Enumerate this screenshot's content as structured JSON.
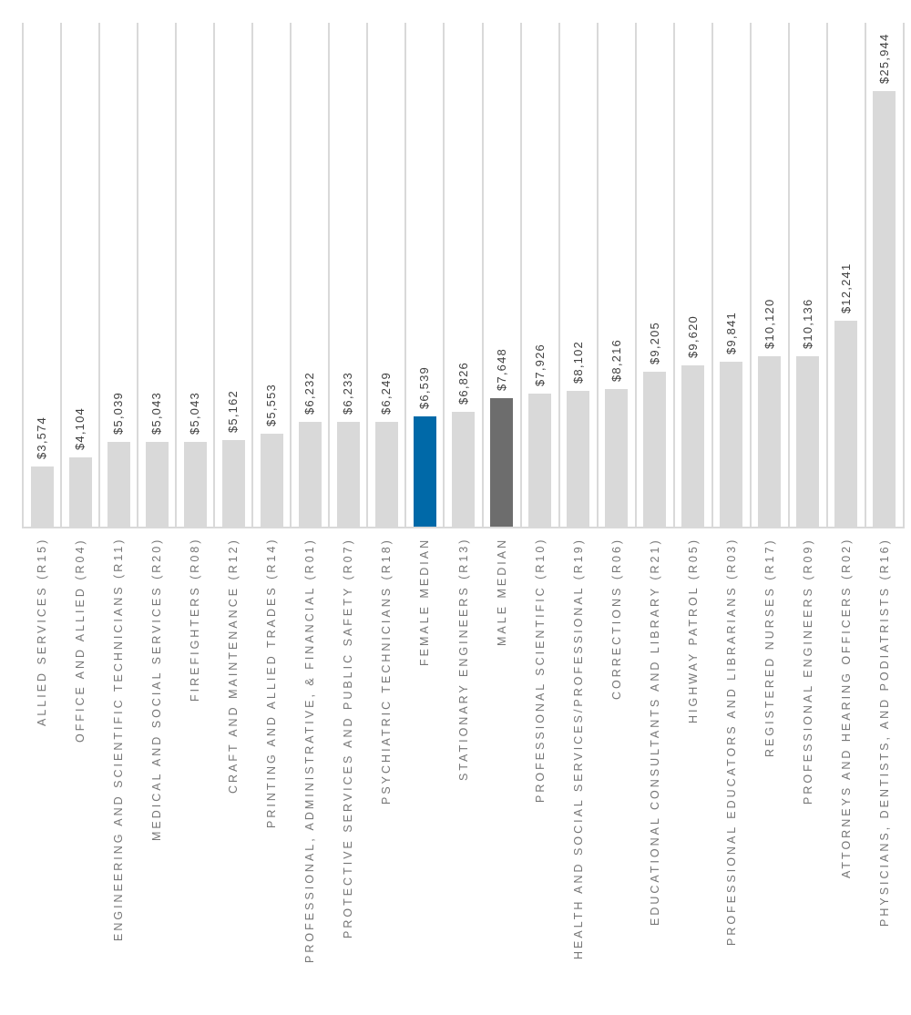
{
  "chart_data": {
    "type": "bar",
    "orientation": "vertical",
    "legend": "none",
    "gridlines": "category-axis-vertical",
    "label_rotation_degrees": 90,
    "ylim": [
      0,
      30000
    ],
    "categories": [
      "ALLIED SERVICES (R15)",
      "OFFICE AND ALLIED (R04)",
      "ENGINEERING AND SCIENTIFIC TECHNICIANS (R11)",
      "MEDICAL AND SOCIAL SERVICES (R20)",
      "FIREFIGHTERS (R08)",
      "CRAFT AND MAINTENANCE (R12)",
      "PRINTING AND ALLIED TRADES (R14)",
      "PROFESSIONAL, ADMINISTRATIVE, & FINANCIAL (R01)",
      "PROTECTIVE SERVICES AND PUBLIC SAFETY (R07)",
      "PSYCHIATRIC TECHNICIANS (R18)",
      "FEMALE MEDIAN",
      "STATIONARY ENGINEERS (R13)",
      "MALE MEDIAN",
      "PROFESSIONAL SCIENTIFIC (R10)",
      "HEALTH AND SOCIAL SERVICES/PROFESSIONAL (R19)",
      "CORRECTIONS (R06)",
      "EDUCATIONAL CONSULTANTS AND LIBRARY (R21)",
      "HIGHWAY PATROL (R05)",
      "PROFESSIONAL EDUCATORS AND LIBRARIANS (R03)",
      "REGISTERED NURSES (R17)",
      "PROFESSIONAL ENGINEERS (R09)",
      "ATTORNEYS AND HEARING OFFICERS (R02)",
      "PHYSICIANS, DENTISTS, AND PODIATRISTS (R16)"
    ],
    "values": [
      3574,
      4104,
      5039,
      5043,
      5043,
      5162,
      5553,
      6232,
      6233,
      6249,
      6539,
      6826,
      7648,
      7926,
      8102,
      8216,
      9205,
      9620,
      9841,
      10120,
      10136,
      12241,
      25944
    ],
    "value_labels": [
      "$3,574",
      "$4,104",
      "$5,039",
      "$5,043",
      "$5,043",
      "$5,162",
      "$5,553",
      "$6,232",
      "$6,233",
      "$6,249",
      "$6,539",
      "$6,826",
      "$7,648",
      "$7,926",
      "$8,102",
      "$8,216",
      "$9,205",
      "$9,620",
      "$9,841",
      "$10,120",
      "$10,136",
      "$12,241",
      "$25,944"
    ],
    "bar_colors": [
      "#D9D9D9",
      "#D9D9D9",
      "#D9D9D9",
      "#D9D9D9",
      "#D9D9D9",
      "#D9D9D9",
      "#D9D9D9",
      "#D9D9D9",
      "#D9D9D9",
      "#D9D9D9",
      "#0069A8",
      "#D9D9D9",
      "#6D6D6D",
      "#D9D9D9",
      "#D9D9D9",
      "#D9D9D9",
      "#D9D9D9",
      "#D9D9D9",
      "#D9D9D9",
      "#D9D9D9",
      "#D9D9D9",
      "#D9D9D9",
      "#D9D9D9"
    ],
    "highlight_colors": {
      "female_median": "#0069A8",
      "male_median": "#6D6D6D",
      "default_bar": "#D9D9D9"
    },
    "gridline_color": "#D9D9D9",
    "axis_line_color": "#D9D9D9",
    "value_label_color": "#404040",
    "category_label_color": "#767676"
  }
}
